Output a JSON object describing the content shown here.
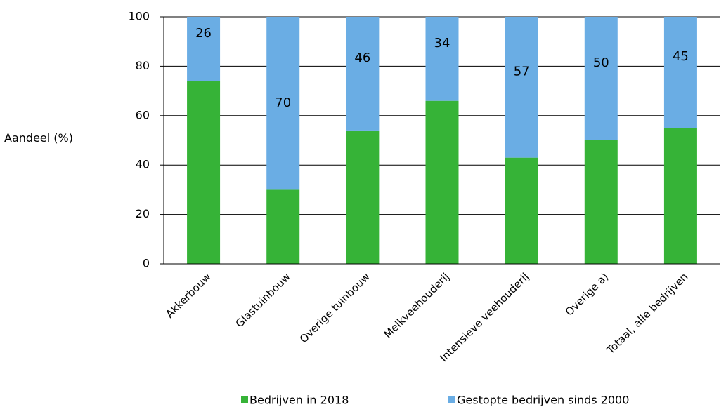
{
  "chart_data": {
    "type": "stacked-bar",
    "y_label": "Aandeel (%)",
    "categories": [
      "Akkerbouw",
      "Glastuinbouw",
      "Overige tuinbouw",
      "Melkveehouderij",
      "Intensieve veehouderij",
      "Overige a)",
      "Totaal, alle bedrijven"
    ],
    "series": [
      {
        "name": "Bedrijven in 2018",
        "color": "#36b337",
        "values": [
          74,
          30,
          54,
          66,
          43,
          50,
          55
        ],
        "show_labels": false
      },
      {
        "name": "Gestopte bedrijven sinds 2000",
        "color": "#6aade4",
        "values": [
          26,
          70,
          46,
          34,
          57,
          50,
          45
        ],
        "show_labels": true
      }
    ],
    "ylim": [
      0,
      100
    ],
    "yticks": [
      0,
      20,
      40,
      60,
      80,
      100
    ],
    "grid": true
  }
}
